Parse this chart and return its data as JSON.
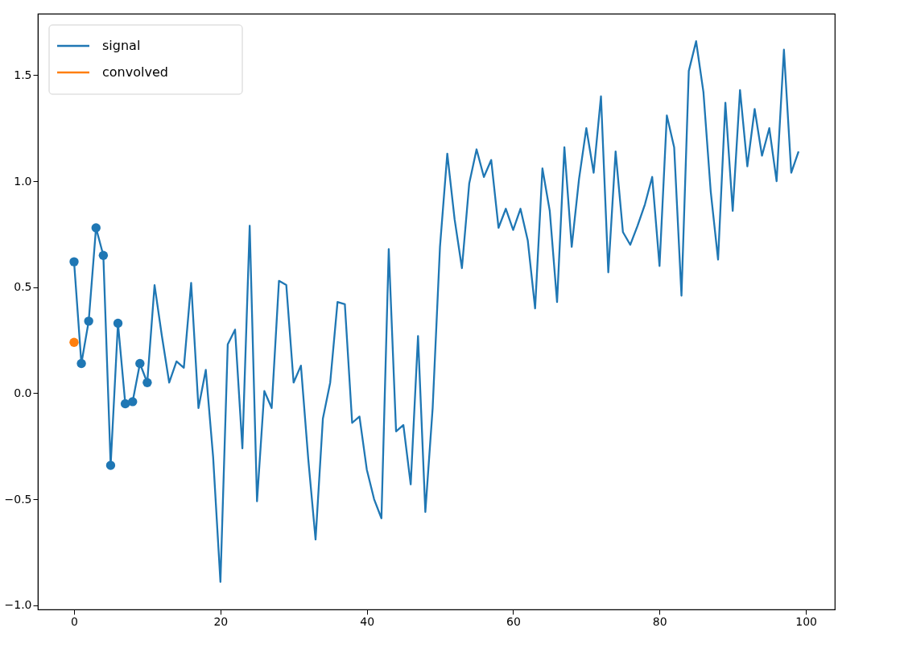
{
  "chart_data": {
    "type": "line",
    "xlim": [
      -4.95,
      103.95
    ],
    "ylim": [
      -1.02,
      1.79
    ],
    "xticks": [
      0,
      20,
      40,
      60,
      80,
      100
    ],
    "yticks": [
      {
        "value": -1,
        "label": "−1.0"
      },
      {
        "value": -0.5,
        "label": "−0.5"
      },
      {
        "value": 0,
        "label": "0.0"
      },
      {
        "value": 0.5,
        "label": "0.5"
      },
      {
        "value": 1,
        "label": "1.0"
      },
      {
        "value": 1.5,
        "label": "1.5"
      }
    ],
    "grid": false,
    "legend": "top left",
    "series": [
      {
        "name": "signal",
        "marker": "none",
        "color": "#1f77b4",
        "x": [
          0,
          1,
          2,
          3,
          4,
          5,
          6,
          7,
          8,
          9,
          10,
          11,
          12,
          13,
          14,
          15,
          16,
          17,
          18,
          19,
          20,
          21,
          22,
          23,
          24,
          25,
          26,
          27,
          28,
          29,
          30,
          31,
          32,
          33,
          34,
          35,
          36,
          37,
          38,
          39,
          40,
          41,
          42,
          43,
          44,
          45,
          46,
          47,
          48,
          49,
          50,
          51,
          52,
          53,
          54,
          55,
          56,
          57,
          58,
          59,
          60,
          61,
          62,
          63,
          64,
          65,
          66,
          67,
          68,
          69,
          70,
          71,
          72,
          73,
          74,
          75,
          76,
          77,
          78,
          79,
          80,
          81,
          82,
          83,
          84,
          85,
          86,
          87,
          88,
          89,
          90,
          91,
          92,
          93,
          94,
          95,
          96,
          97,
          98,
          99
        ],
        "values": [
          0.62,
          0.14,
          0.34,
          0.78,
          0.65,
          -0.34,
          0.33,
          -0.05,
          -0.04,
          0.14,
          0.05,
          0.51,
          0.27,
          0.05,
          0.15,
          0.12,
          0.52,
          -0.07,
          0.11,
          -0.3,
          -0.89,
          0.23,
          0.3,
          -0.26,
          0.79,
          -0.51,
          0.01,
          -0.07,
          0.53,
          0.51,
          0.05,
          0.13,
          -0.31,
          -0.69,
          -0.12,
          0.05,
          0.43,
          0.42,
          -0.14,
          -0.11,
          -0.36,
          -0.5,
          -0.59,
          0.68,
          -0.18,
          -0.15,
          -0.43,
          0.27,
          -0.56,
          -0.07,
          0.69,
          1.13,
          0.82,
          0.59,
          0.99,
          1.15,
          1.02,
          1.1,
          0.78,
          0.87,
          0.77,
          0.87,
          0.72,
          0.4,
          1.06,
          0.86,
          0.43,
          1.16,
          0.69,
          1.01,
          1.25,
          1.04,
          1.4,
          0.57,
          1.14,
          0.76,
          0.7,
          0.79,
          0.89,
          1.02,
          0.6,
          1.31,
          1.16,
          0.46,
          1.52,
          1.66,
          1.42,
          0.95,
          0.63,
          1.37,
          0.86,
          1.43,
          1.07,
          1.34,
          1.12,
          1.25,
          1.0,
          1.62,
          1.04,
          1.14
        ]
      },
      {
        "type": "scatter",
        "marker": "circle",
        "color": "#1f77b4",
        "x": [
          0,
          1,
          2,
          3,
          4,
          5,
          6,
          7,
          8,
          9,
          10
        ],
        "values": [
          0.62,
          0.14,
          0.34,
          0.78,
          0.65,
          -0.34,
          0.33,
          -0.05,
          -0.04,
          0.14,
          0.05
        ]
      },
      {
        "name": "convolved",
        "marker": "circle",
        "color": "#ff7f0e",
        "x": [
          0
        ],
        "values": [
          0.24
        ]
      }
    ]
  }
}
